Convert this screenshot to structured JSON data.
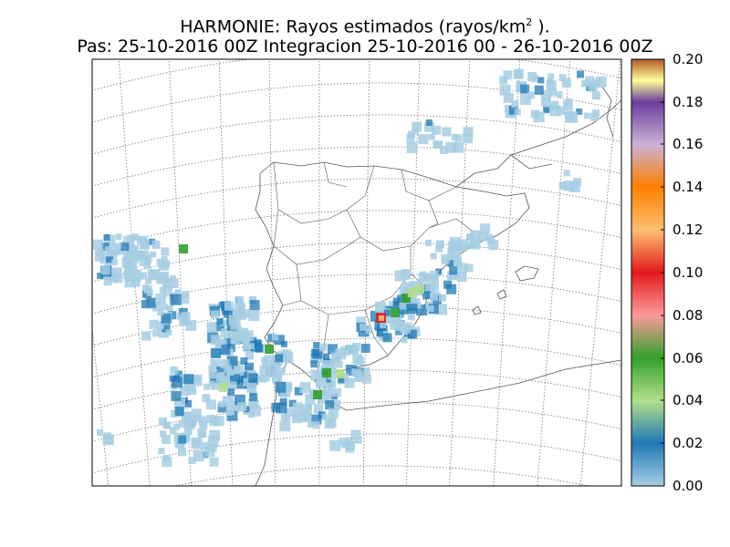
{
  "title": {
    "line1_prefix": "HARMONIE: Rayos estimados  (rayos/km",
    "line1_sup": "2",
    "line1_suffix": " ).",
    "line2": "Pas: 25-10-2016 00Z Integracion 25-10-2016 00 - 26-10-2016 00Z"
  },
  "colorbar": {
    "ticks": [
      "0.20",
      "0.18",
      "0.16",
      "0.14",
      "0.12",
      "0.10",
      "0.08",
      "0.06",
      "0.04",
      "0.02",
      "0.00"
    ],
    "range": [
      0.0,
      0.2
    ],
    "colors": [
      "#a6cee3",
      "#1f78b4",
      "#b2df8a",
      "#33a02c",
      "#fb9a99",
      "#e31a1c",
      "#fdbf6f",
      "#ff7f00",
      "#cab2d6",
      "#6a3d9a",
      "#ffff99",
      "#b15928"
    ]
  },
  "map": {
    "projection_grid": "dotted-lat-lon",
    "region": "Iberian Peninsula / Western Mediterranean"
  }
}
